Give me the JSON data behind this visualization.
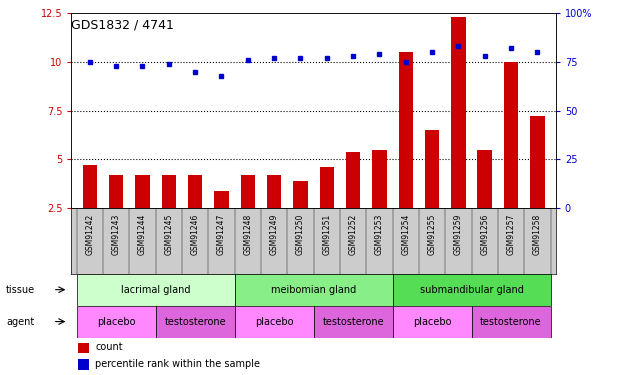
{
  "title": "GDS1832 / 4741",
  "samples": [
    "GSM91242",
    "GSM91243",
    "GSM91244",
    "GSM91245",
    "GSM91246",
    "GSM91247",
    "GSM91248",
    "GSM91249",
    "GSM91250",
    "GSM91251",
    "GSM91252",
    "GSM91253",
    "GSM91254",
    "GSM91255",
    "GSM91259",
    "GSM91256",
    "GSM91257",
    "GSM91258"
  ],
  "count_values": [
    4.7,
    4.2,
    4.2,
    4.2,
    4.2,
    3.4,
    4.2,
    4.2,
    3.9,
    4.6,
    5.4,
    5.5,
    10.5,
    6.5,
    12.3,
    5.5,
    10.0,
    7.2
  ],
  "percentile_values": [
    75,
    73,
    73,
    74,
    70,
    68,
    76,
    77,
    77,
    77,
    78,
    79,
    75,
    80,
    83,
    78,
    82,
    80
  ],
  "ylim_left": [
    2.5,
    12.5
  ],
  "ylim_right": [
    0,
    100
  ],
  "yticks_left": [
    2.5,
    5.0,
    7.5,
    10.0,
    12.5
  ],
  "yticks_right": [
    0,
    25,
    50,
    75,
    100
  ],
  "ytick_labels_left": [
    "2.5",
    "5",
    "7.5",
    "10",
    "12.5"
  ],
  "ytick_labels_right": [
    "0",
    "25",
    "50",
    "75",
    "100%"
  ],
  "hlines": [
    5.0,
    7.5,
    10.0
  ],
  "bar_color": "#cc0000",
  "dot_color": "#0000cc",
  "bar_width": 0.55,
  "tissue_groups": [
    {
      "label": "lacrimal gland",
      "start": 0,
      "end": 6,
      "color": "#ccffcc"
    },
    {
      "label": "meibomian gland",
      "start": 6,
      "end": 12,
      "color": "#88ee88"
    },
    {
      "label": "submandibular gland",
      "start": 12,
      "end": 18,
      "color": "#55dd55"
    }
  ],
  "agent_groups": [
    {
      "label": "placebo",
      "start": 0,
      "end": 3,
      "color": "#ff88ff"
    },
    {
      "label": "testosterone",
      "start": 3,
      "end": 6,
      "color": "#dd66dd"
    },
    {
      "label": "placebo",
      "start": 6,
      "end": 9,
      "color": "#ff88ff"
    },
    {
      "label": "testosterone",
      "start": 9,
      "end": 12,
      "color": "#dd66dd"
    },
    {
      "label": "placebo",
      "start": 12,
      "end": 15,
      "color": "#ff88ff"
    },
    {
      "label": "testosterone",
      "start": 15,
      "end": 18,
      "color": "#dd66dd"
    }
  ],
  "legend_count_color": "#cc0000",
  "legend_percentile_color": "#0000cc",
  "tick_label_color_left": "#cc0000",
  "tick_label_color_right": "#0000cc",
  "sample_label_bg": "#cccccc",
  "plot_bg_color": "#ffffff"
}
